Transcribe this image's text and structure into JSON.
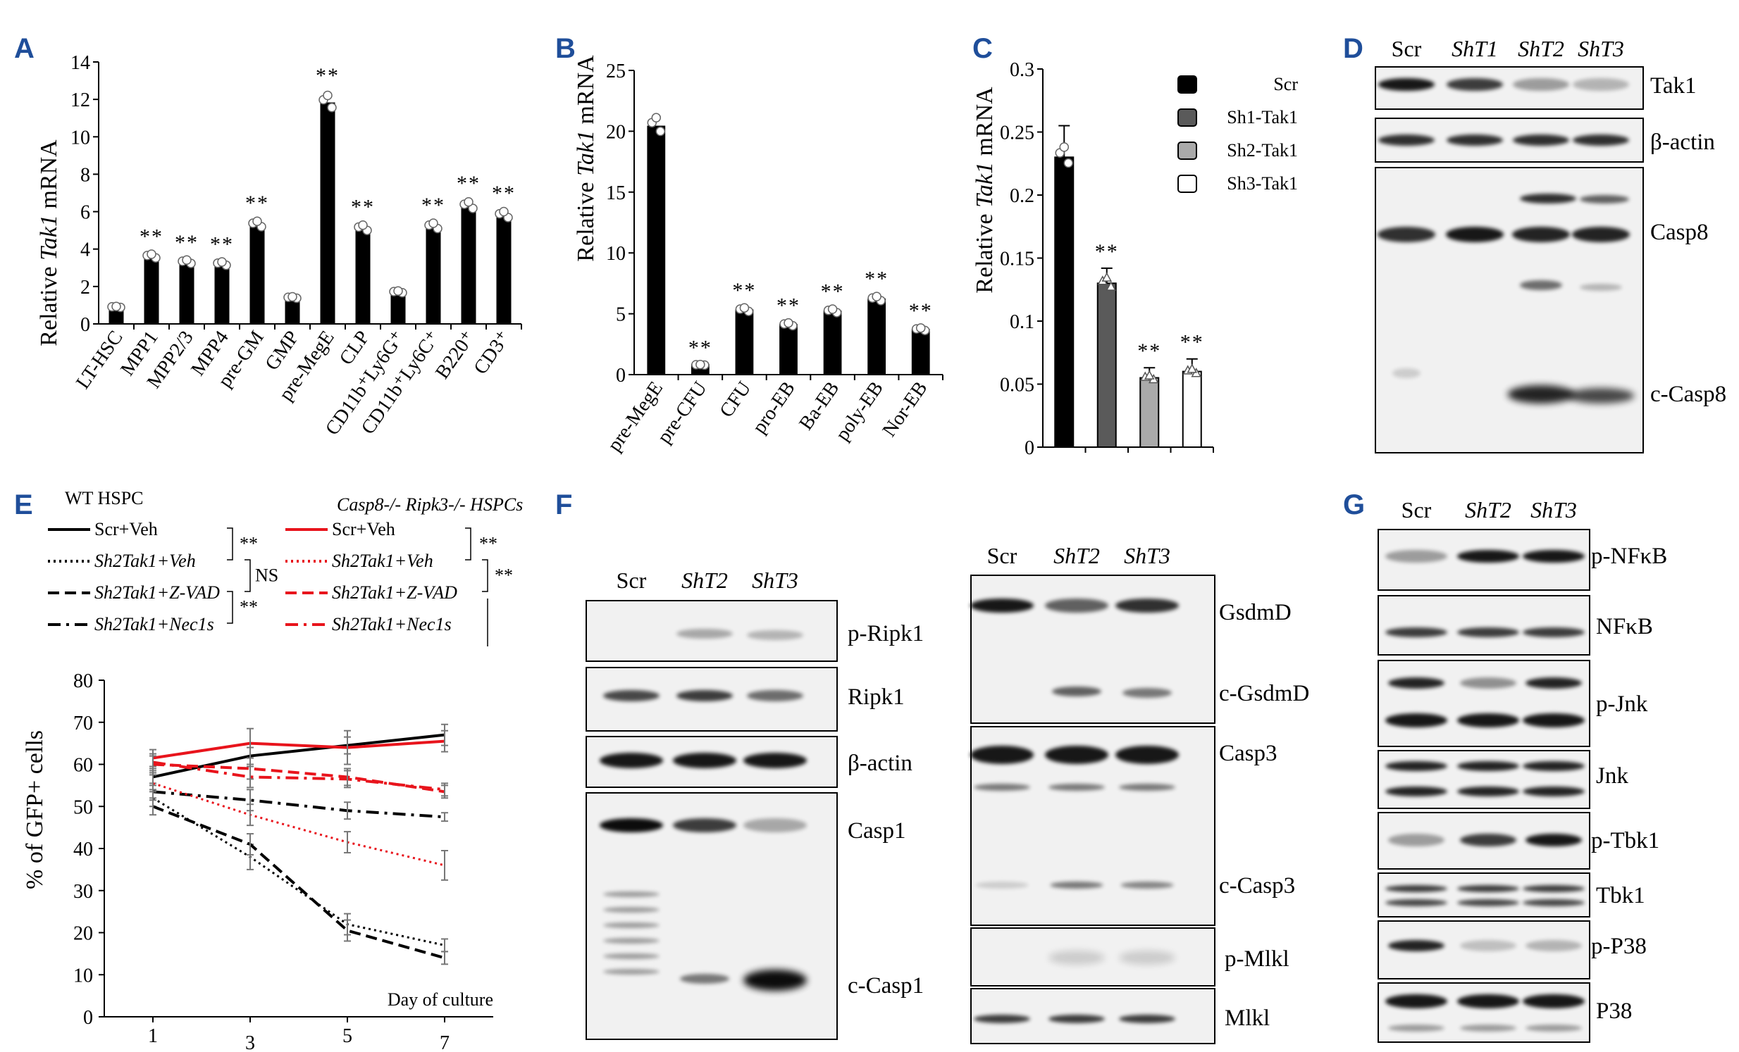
{
  "figure": {
    "panel_labels": [
      "A",
      "B",
      "C",
      "D",
      "E",
      "F",
      "G"
    ],
    "D": {
      "lanes": [
        "Scr",
        "ShT1",
        "ShT2",
        "ShT3"
      ],
      "blots": [
        "Tak1",
        "β-actin",
        "Casp8",
        "c-Casp8"
      ]
    },
    "F": {
      "left_lanes": [
        "Scr",
        "ShT2",
        "ShT3"
      ],
      "left_blots": [
        "p-Ripk1",
        "Ripk1",
        "β-actin",
        "Casp1",
        "c-Casp1"
      ],
      "right_lanes": [
        "Scr",
        "ShT2",
        "ShT3"
      ],
      "right_blots": [
        "GsdmD",
        "c-GsdmD",
        "Casp3",
        "c-Casp3",
        "p-Mlkl",
        "Mlkl"
      ]
    },
    "G": {
      "lanes": [
        "Scr",
        "ShT2",
        "ShT3"
      ],
      "blots": [
        "p-NFκB",
        "NFκB",
        "p-Jnk",
        "Jnk",
        "p-Tbk1",
        "Tbk1",
        "p-P38",
        "P38"
      ]
    }
  },
  "chart_data": [
    {
      "panel": "A",
      "type": "bar",
      "ylabel_pre": "Relative ",
      "ylabel_gene": "Tak1",
      "ylabel_post": " mRNA",
      "ylim": [
        0,
        14
      ],
      "yticks": [
        0,
        2,
        4,
        6,
        8,
        10,
        12,
        14
      ],
      "categories": [
        "LT-HSC",
        "MPP1",
        "MPP2/3",
        "MPP4",
        "pre-GM",
        "GMP",
        "pre-MegE",
        "CLP",
        "CD11b⁺Ly6G⁺",
        "CD11b⁺Ly6C⁺",
        "B220⁺",
        "CD3⁺"
      ],
      "values": [
        0.9,
        3.6,
        3.3,
        3.2,
        5.3,
        1.4,
        11.8,
        5.1,
        1.7,
        5.2,
        6.3,
        5.8
      ],
      "significance": [
        "",
        "**",
        "**",
        "**",
        "**",
        "",
        "**",
        "**",
        "",
        "**",
        "**",
        "**"
      ],
      "grid": false
    },
    {
      "panel": "B",
      "type": "bar",
      "ylabel_pre": "Relative ",
      "ylabel_gene": "Tak1",
      "ylabel_post": " mRNA",
      "ylim": [
        0,
        25
      ],
      "yticks": [
        0,
        5,
        10,
        15,
        20,
        25
      ],
      "categories": [
        "pre-MegE",
        "pre-CFU",
        "CFU",
        "pro-EB",
        "Ba-EB",
        "poly-EB",
        "Nor-EB"
      ],
      "values": [
        20.4,
        0.8,
        5.3,
        4.1,
        5.2,
        6.2,
        3.7
      ],
      "significance": [
        "",
        "**",
        "**",
        "**",
        "**",
        "**",
        "**"
      ],
      "grid": false
    },
    {
      "panel": "C",
      "type": "bar",
      "ylabel_pre": "Relative ",
      "ylabel_gene": "Tak1",
      "ylabel_post": " mRNA",
      "ylim": [
        0,
        0.3
      ],
      "yticks": [
        "0",
        "0.05",
        "0.1",
        "0.15",
        "0.2",
        "0.25",
        "0.3"
      ],
      "categories": [
        "Scr",
        "Sh1-Tak1",
        "Sh2-Tak1",
        "Sh3-Tak1"
      ],
      "values": [
        0.23,
        0.13,
        0.055,
        0.06
      ],
      "errors": [
        0.025,
        0.012,
        0.008,
        0.01
      ],
      "colors": [
        "#000000",
        "#5a5a5a",
        "#aaaaaa",
        "#ffffff"
      ],
      "significance": [
        "",
        "**",
        "**",
        "**"
      ],
      "legend": [
        "Scr",
        "Sh1-Tak1",
        "Sh2-Tak1",
        "Sh3-Tak1"
      ],
      "legend_position": "top-right",
      "grid": false
    },
    {
      "panel": "E",
      "type": "line",
      "ylabel": "% of GFP+ cells",
      "xlabel": "Day of culture",
      "x": [
        1,
        3,
        5,
        7
      ],
      "xlim": [
        0,
        8
      ],
      "ylim": [
        0,
        80
      ],
      "yticks": [
        0,
        10,
        20,
        30,
        40,
        50,
        60,
        70,
        80
      ],
      "legend_groups": [
        "WT HSPC",
        "Casp8-/- Ripk3-/- HSPCs"
      ],
      "series": [
        {
          "name": "Scr+Veh",
          "group": "WT HSPC",
          "color": "#000000",
          "dash": "solid",
          "values": [
            57,
            62,
            64.5,
            67
          ],
          "errors": [
            2,
            2,
            2,
            2.5
          ]
        },
        {
          "name": "Sh2Tak1+Veh",
          "group": "WT HSPC",
          "color": "#000000",
          "dash": "dotted",
          "values": [
            52,
            38,
            22,
            17
          ],
          "errors": [
            2,
            3,
            2.5,
            1.5
          ]
        },
        {
          "name": "Sh2Tak1+Z-VAD",
          "group": "WT HSPC",
          "color": "#000000",
          "dash": "dashed",
          "values": [
            50,
            41,
            20.5,
            14
          ],
          "errors": [
            2,
            2.5,
            2.5,
            1.5
          ]
        },
        {
          "name": "Sh2Tak1+Nec1s",
          "group": "WT HSPC",
          "color": "#000000",
          "dash": "dashdot",
          "values": [
            53.5,
            51.5,
            49,
            47.5
          ],
          "errors": [
            2,
            2.5,
            2,
            1
          ]
        },
        {
          "name": "Scr+Veh",
          "group": "Casp8-/- Ripk3-/- HSPCs",
          "color": "#e8141c",
          "dash": "solid",
          "values": [
            61.5,
            65,
            64,
            65.5
          ],
          "errors": [
            2,
            3.5,
            4,
            2.5
          ]
        },
        {
          "name": "Sh2Tak1+Veh",
          "group": "Casp8-/- Ripk3-/- HSPCs",
          "color": "#e8141c",
          "dash": "dotted",
          "values": [
            55.5,
            48,
            41.5,
            36
          ],
          "errors": [
            2,
            2.5,
            2.5,
            3.5
          ]
        },
        {
          "name": "Sh2Tak1+Z-VAD",
          "group": "Casp8-/- Ripk3-/- HSPCs",
          "color": "#e8141c",
          "dash": "dashed",
          "values": [
            60,
            59,
            57,
            53.5
          ],
          "errors": [
            2,
            2.5,
            2,
            1.5
          ]
        },
        {
          "name": "Sh2Tak1+Nec1s",
          "group": "Casp8-/- Ripk3-/- HSPCs",
          "color": "#e8141c",
          "dash": "dashdot",
          "values": [
            60.5,
            57,
            56.5,
            54
          ],
          "errors": [
            2,
            2.5,
            2,
            1.5
          ]
        }
      ],
      "significance_labels": [
        "**",
        "NS",
        "**",
        "**",
        "**"
      ],
      "grid": false
    }
  ]
}
